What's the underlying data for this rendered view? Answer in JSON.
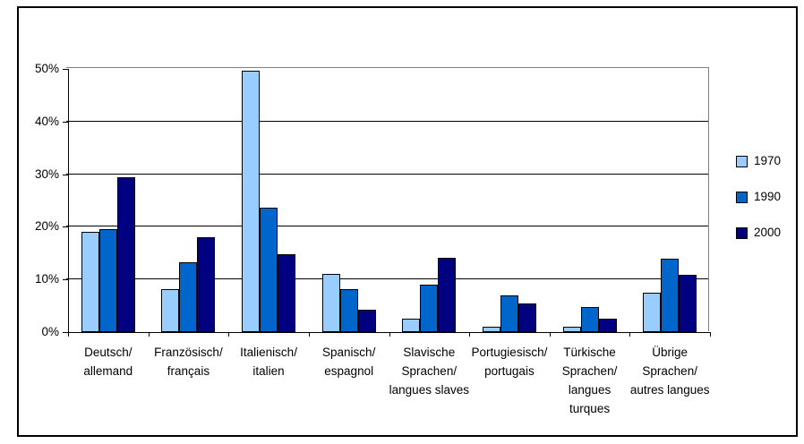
{
  "chart_data": {
    "type": "bar",
    "title": "",
    "xlabel": "",
    "ylabel": "",
    "ylim": [
      0,
      50
    ],
    "ytick_step": 10,
    "ytick_labels": [
      "0%",
      "10%",
      "20%",
      "30%",
      "40%",
      "50%"
    ],
    "grid": true,
    "legend_position": "right",
    "categories": [
      "Deutsch/allemand",
      "Französisch/français",
      "Italienisch/italien",
      "Spanisch/espagnol",
      "Slavische Sprachen/langues slaves",
      "Portugiesisch/portugais",
      "Türkische Sprachen/langues turques",
      "Übrige Sprachen/autres langues"
    ],
    "category_label_lines": [
      [
        "Deutsch/",
        "allemand"
      ],
      [
        "Französisch/",
        "français"
      ],
      [
        "Italienisch/",
        "italien"
      ],
      [
        "Spanisch/",
        "espagnol"
      ],
      [
        "Slavische",
        "Sprachen/",
        "langues slaves"
      ],
      [
        "Portugiesisch/",
        "portugais"
      ],
      [
        "Türkische",
        "Sprachen/",
        "langues",
        "turques"
      ],
      [
        "Übrige",
        "Sprachen/",
        "autres langues"
      ]
    ],
    "series": [
      {
        "name": "1970",
        "color": "#99CCFF",
        "values": [
          19.0,
          8.1,
          49.6,
          11.1,
          2.5,
          1.0,
          1.0,
          7.5
        ]
      },
      {
        "name": "1990",
        "color": "#0066CC",
        "values": [
          19.5,
          13.2,
          23.6,
          8.1,
          9.0,
          6.9,
          4.8,
          13.9
        ]
      },
      {
        "name": "2000",
        "color": "#000080",
        "values": [
          29.4,
          18.0,
          14.8,
          4.2,
          14.2,
          5.5,
          2.6,
          10.8
        ]
      }
    ]
  },
  "colors": {
    "background": "#FFFFFF",
    "outer_border": "#000000",
    "gridline": "#000000",
    "plot_border_gray": "#808080",
    "bar_border": "#000000",
    "text": "#000000",
    "series_1970": "#99CCFF",
    "series_1990": "#0066CC",
    "series_2000": "#000080"
  }
}
